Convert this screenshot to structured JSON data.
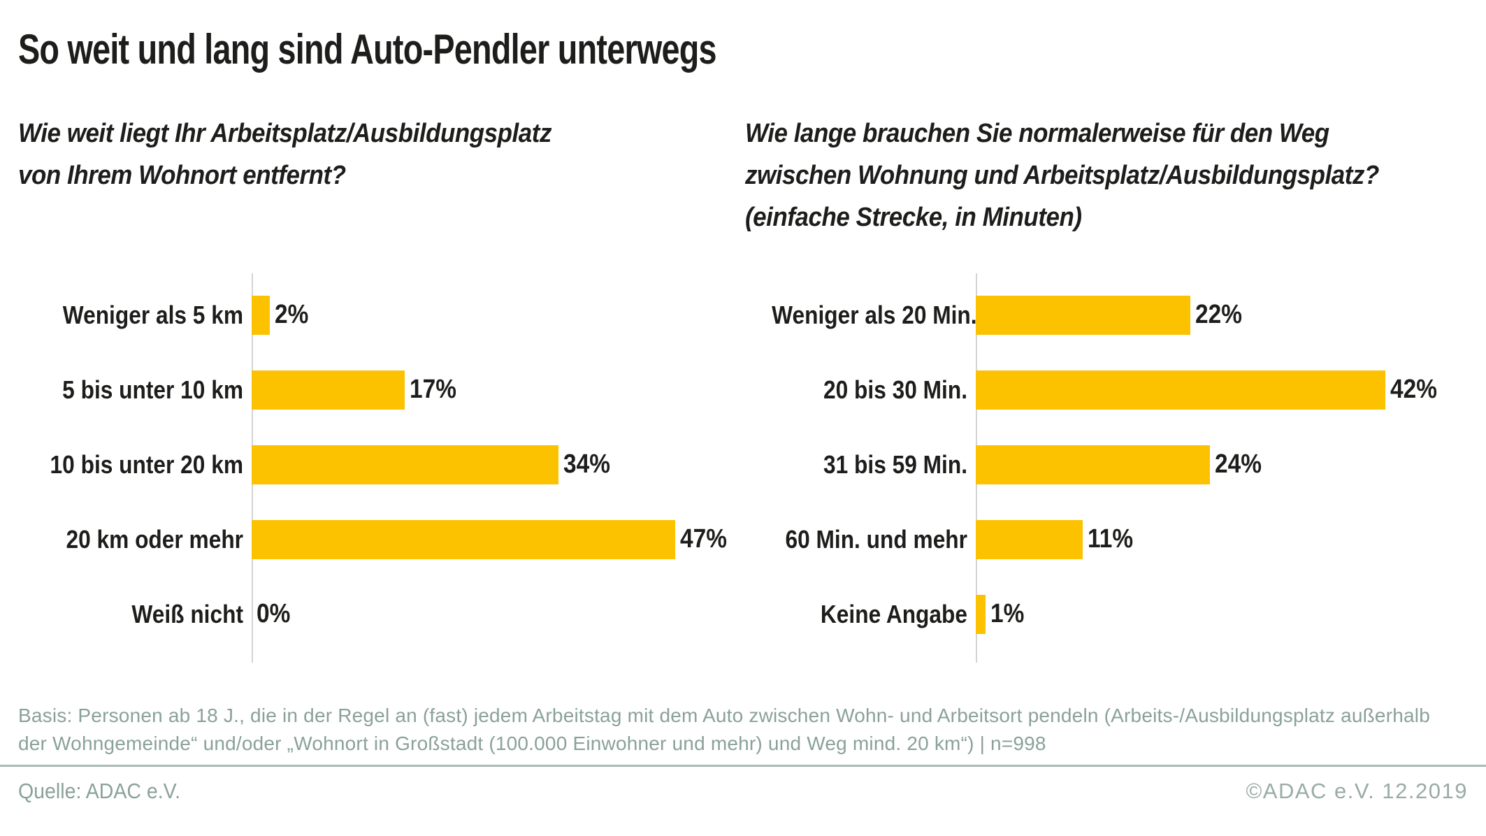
{
  "title": "So weit und lang sind Auto-Pendler unterwegs",
  "colors": {
    "bar_yellow": "#FCC200",
    "text_black": "#1d1d1b",
    "footer_sage": "#8aa19a",
    "divider_sage": "#a9bbb4",
    "axis_gray": "#d4d4d4"
  },
  "chart_data": [
    {
      "type": "bar",
      "orientation": "horizontal",
      "title": "Wie weit liegt Ihr Arbeitsplatz/Ausbildungsplatz\nvon Ihrem Wohnort entfernt?",
      "categories": [
        "Weniger als 5 km",
        "5 bis unter 10 km",
        "10 bis unter 20 km",
        "20 km oder mehr",
        "Weiß nicht"
      ],
      "values": [
        2,
        17,
        34,
        47,
        0
      ],
      "value_labels": [
        "2%",
        "17%",
        "34%",
        "47%",
        "0%"
      ],
      "unit": "%",
      "xlim": [
        0,
        50
      ],
      "grid": false,
      "legend": "none",
      "bar_color": "#FCC200"
    },
    {
      "type": "bar",
      "orientation": "horizontal",
      "title": "Wie lange brauchen Sie normalerweise für den Weg\nzwischen Wohnung und Arbeitsplatz/Ausbildungsplatz?\n(einfache Strecke, in Minuten)",
      "categories": [
        "Weniger als 20 Min.",
        "20 bis 30 Min.",
        "31 bis 59 Min.",
        "60 Min. und mehr",
        "Keine Angabe"
      ],
      "values": [
        22,
        42,
        24,
        11,
        1
      ],
      "value_labels": [
        "22%",
        "42%",
        "24%",
        "11%",
        "1%"
      ],
      "unit": "%",
      "xlim": [
        0,
        45
      ],
      "grid": false,
      "legend": "none",
      "bar_color": "#FCC200"
    }
  ],
  "footer": {
    "basis": "Basis: Personen ab 18 J., die in der Regel an (fast) jedem Arbeitstag mit dem Auto zwischen Wohn- und Arbeitsort pendeln (Arbeits-/Ausbildungsplatz außerhalb\nder Wohngemeinde“ und/oder „Wohnort in Großstadt (100.000 Einwohner und mehr) und Weg mind. 20 km“) | n=998",
    "source": "Quelle: ADAC e.V.",
    "copyright": "©ADAC e.V.  12.2019"
  }
}
